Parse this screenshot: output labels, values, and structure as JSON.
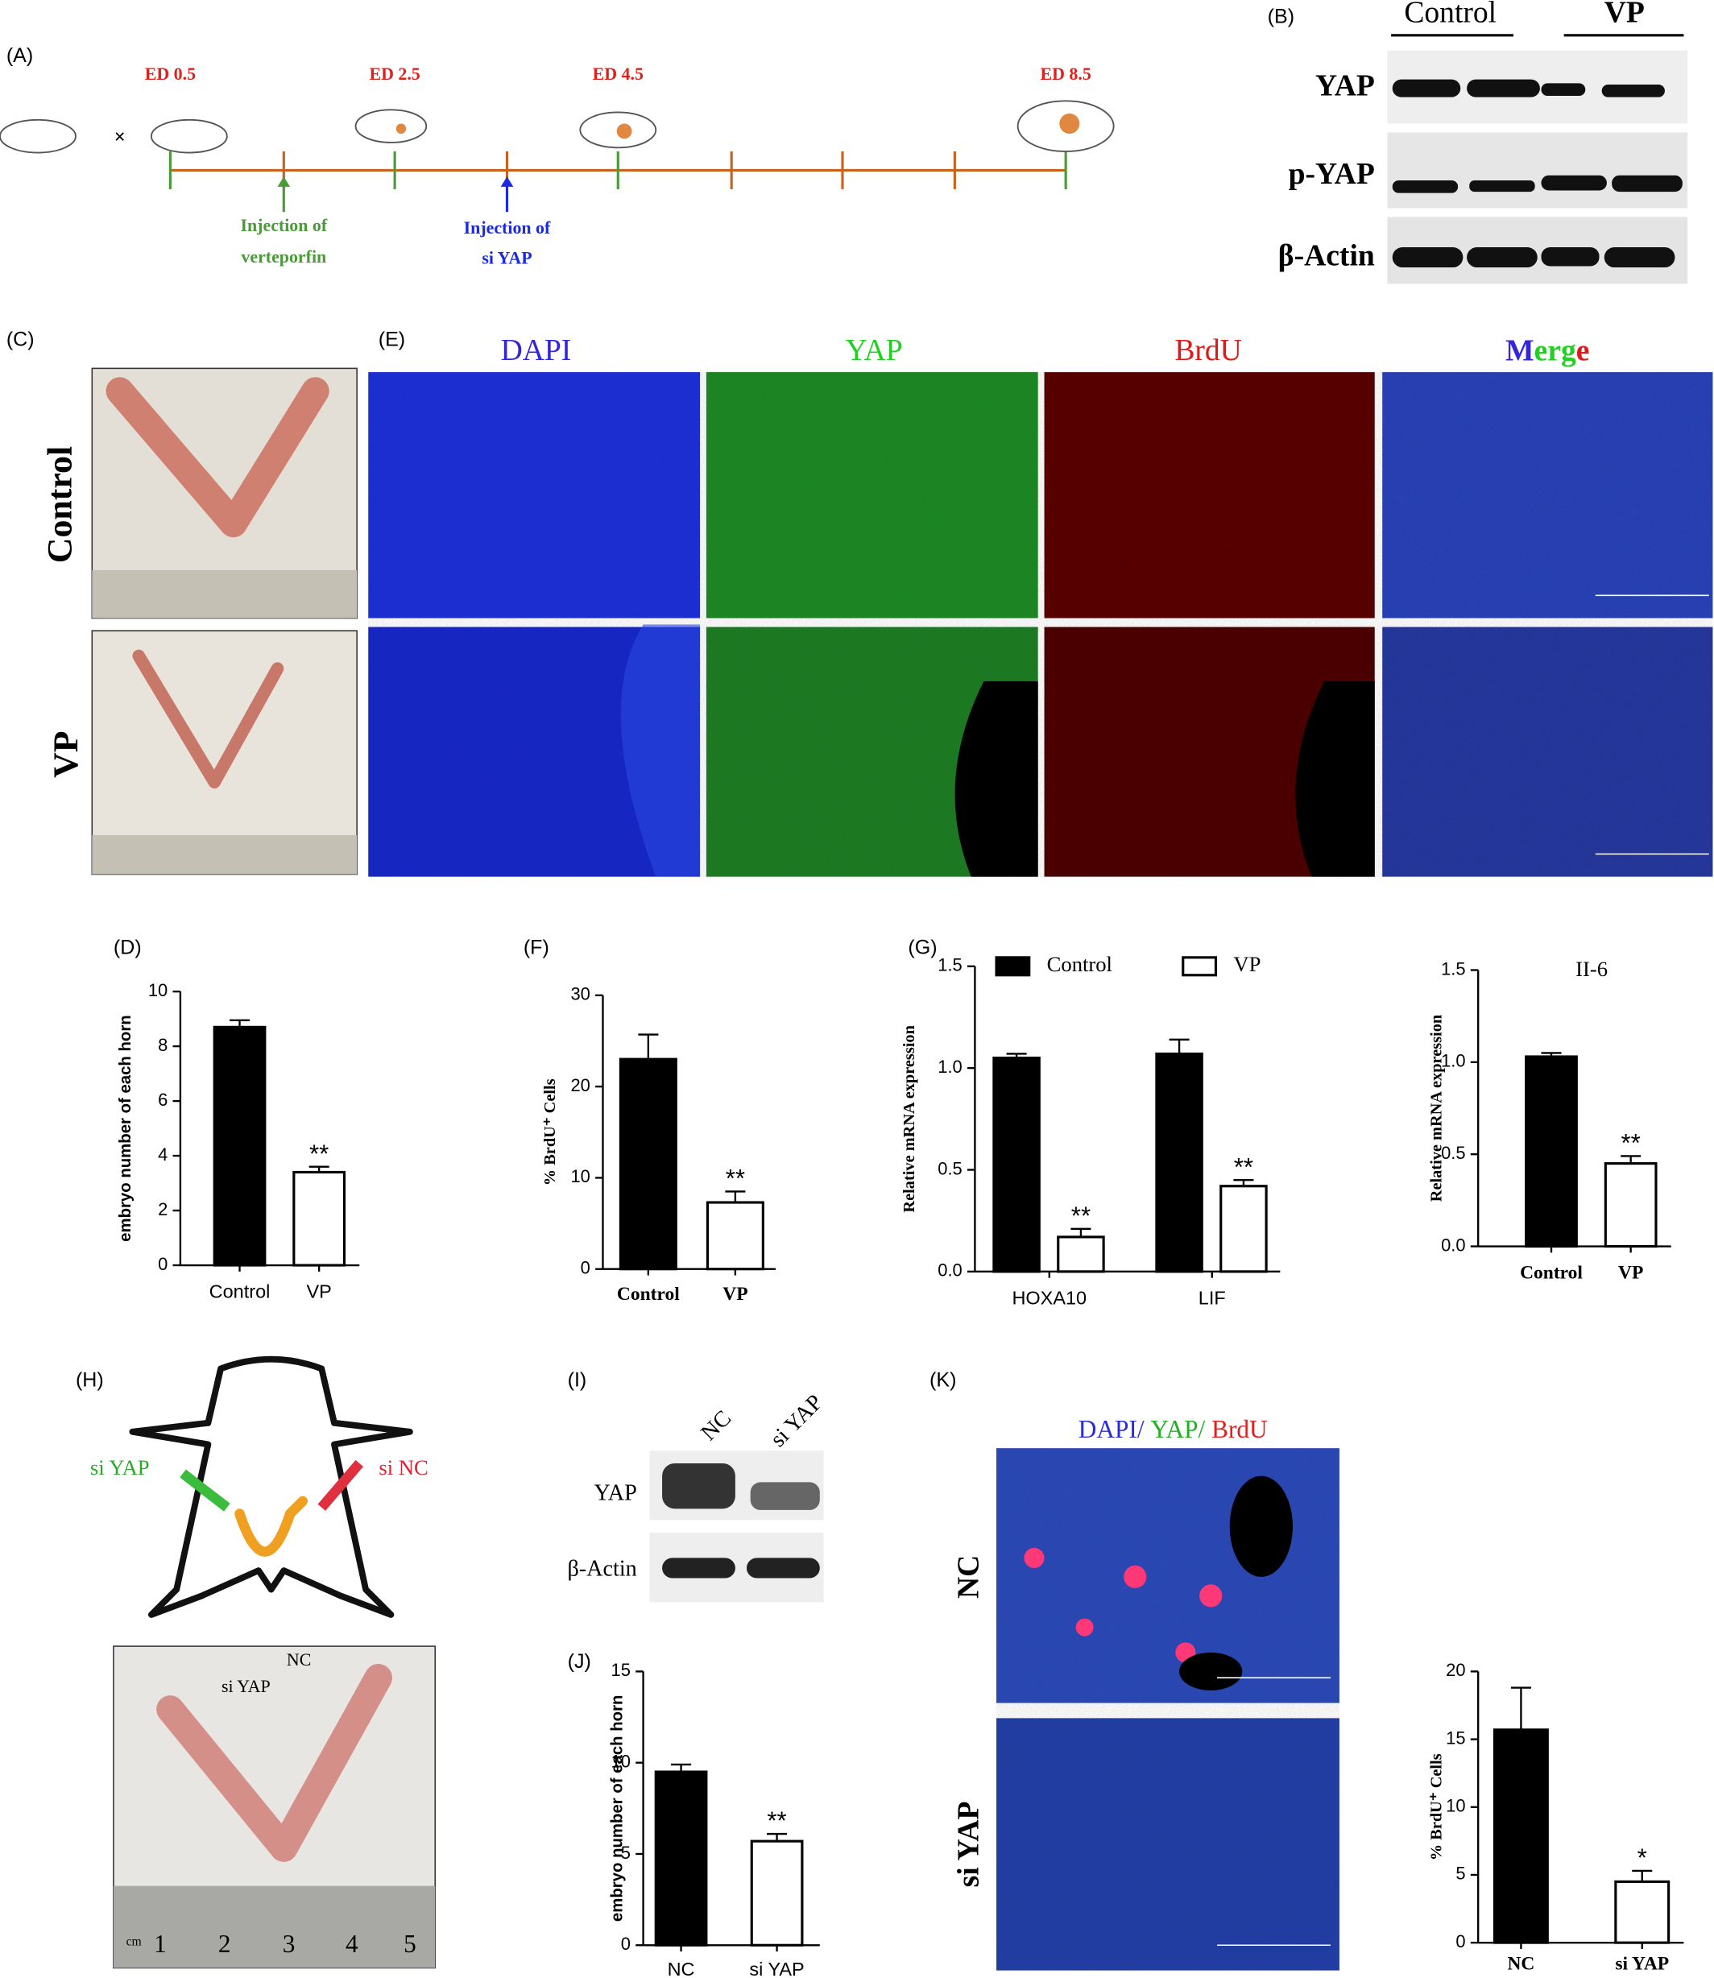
{
  "panel_labels": {
    "A": "(A)",
    "B": "(B)",
    "C": "(C)",
    "D": "(D)",
    "E": "(E)",
    "F": "(F)",
    "G": "(G)",
    "H": "(H)",
    "I": "(I)",
    "J": "(J)",
    "K": "(K)"
  },
  "timeline": {
    "stages": [
      "ED 0.5",
      "ED 2.5",
      "ED 4.5",
      "ED 8.5"
    ],
    "injection_verteporfin": [
      "Injection of",
      "verteporfin"
    ],
    "injection_siyap": [
      "Injection of",
      "si YAP"
    ]
  },
  "blot_b": {
    "groups": [
      "Control",
      "VP"
    ],
    "bands": [
      "YAP",
      "p-YAP",
      "β-Actin"
    ]
  },
  "panel_c": {
    "rows": [
      "Control",
      "VP"
    ]
  },
  "panel_e": {
    "channels": [
      "DAPI",
      "YAP",
      "BrdU"
    ],
    "merge": [
      "M",
      "erg",
      "e"
    ]
  },
  "panel_h": {
    "syringes": [
      "si YAP",
      "si NC"
    ],
    "photo_labels": [
      "si YAP",
      "NC"
    ],
    "ruler": [
      "cm",
      "1",
      "2",
      "3",
      "4",
      "5"
    ]
  },
  "blot_i": {
    "lanes": [
      "NC",
      "si YAP"
    ],
    "bands": [
      "YAP",
      "β-Actin"
    ]
  },
  "panel_k": {
    "header": [
      "DAPI/",
      "YAP/",
      "BrdU"
    ],
    "rows": [
      "NC",
      "si YAP"
    ]
  },
  "chart_data": [
    {
      "type": "bar",
      "categories": [
        "Control",
        "VP"
      ],
      "values": [
        8.7,
        3.4
      ],
      "errors": [
        0.25,
        0.2
      ],
      "bar_colors": [
        "#000000",
        "#ffffff"
      ],
      "significance": [
        null,
        "**"
      ],
      "ylim": [
        0,
        10
      ],
      "yticks": [
        0,
        2,
        4,
        6,
        8,
        10
      ],
      "ylabel": "embryo number of each horn"
    },
    {
      "type": "bar",
      "categories": [
        "Control",
        "VP"
      ],
      "values": [
        23,
        7.3
      ],
      "errors": [
        2.7,
        1.2
      ],
      "bar_colors": [
        "#000000",
        "#ffffff"
      ],
      "significance": [
        null,
        "**"
      ],
      "ylim": [
        0,
        30
      ],
      "yticks": [
        0,
        10,
        20,
        30
      ],
      "ylabel": "% BrdU⁺ Cells"
    },
    {
      "type": "bar",
      "categories": [
        "HOXA10",
        "LIF"
      ],
      "series": [
        {
          "name": "Control",
          "color": "#000000",
          "values": [
            1.05,
            1.07
          ],
          "errors": [
            0.02,
            0.07
          ],
          "significance": [
            null,
            null
          ]
        },
        {
          "name": "VP",
          "color": "#ffffff",
          "values": [
            0.17,
            0.42
          ],
          "errors": [
            0.04,
            0.03
          ],
          "significance": [
            "**",
            "**"
          ]
        }
      ],
      "ylim": [
        0,
        1.5
      ],
      "yticks": [
        {
          "value": 0,
          "label": "0.0"
        },
        0.5,
        {
          "value": 1,
          "label": "1.0"
        },
        1.5
      ],
      "ylabel": "Relative mRNA expression"
    },
    {
      "type": "bar",
      "title": "II-6",
      "categories": [
        "Control",
        "VP"
      ],
      "values": [
        1.03,
        0.45
      ],
      "errors": [
        0.02,
        0.04
      ],
      "bar_colors": [
        "#000000",
        "#ffffff"
      ],
      "significance": [
        null,
        "**"
      ],
      "ylim": [
        0,
        1.5
      ],
      "yticks": [
        {
          "value": 0,
          "label": "0.0"
        },
        0.5,
        {
          "value": 1,
          "label": "1.0"
        },
        1.5
      ],
      "ylabel": "Relative mRNA expression"
    },
    {
      "type": "bar",
      "categories": [
        "NC",
        "si YAP"
      ],
      "values": [
        9.5,
        5.7
      ],
      "errors": [
        0.4,
        0.4
      ],
      "bar_colors": [
        "#000000",
        "#ffffff"
      ],
      "significance": [
        null,
        "**"
      ],
      "ylim": [
        0,
        15
      ],
      "yticks": [
        0,
        5,
        10,
        15
      ],
      "ylabel": "embryo number of each horn"
    },
    {
      "type": "bar",
      "categories": [
        "NC",
        "si YAP"
      ],
      "values": [
        15.7,
        4.5
      ],
      "errors": [
        3.1,
        0.8
      ],
      "bar_colors": [
        "#000000",
        "#ffffff"
      ],
      "significance": [
        null,
        "*"
      ],
      "ylim": [
        0,
        20
      ],
      "yticks": [
        0,
        5,
        10,
        15,
        20
      ],
      "ylabel": "% BrdU⁺ Cells"
    }
  ]
}
